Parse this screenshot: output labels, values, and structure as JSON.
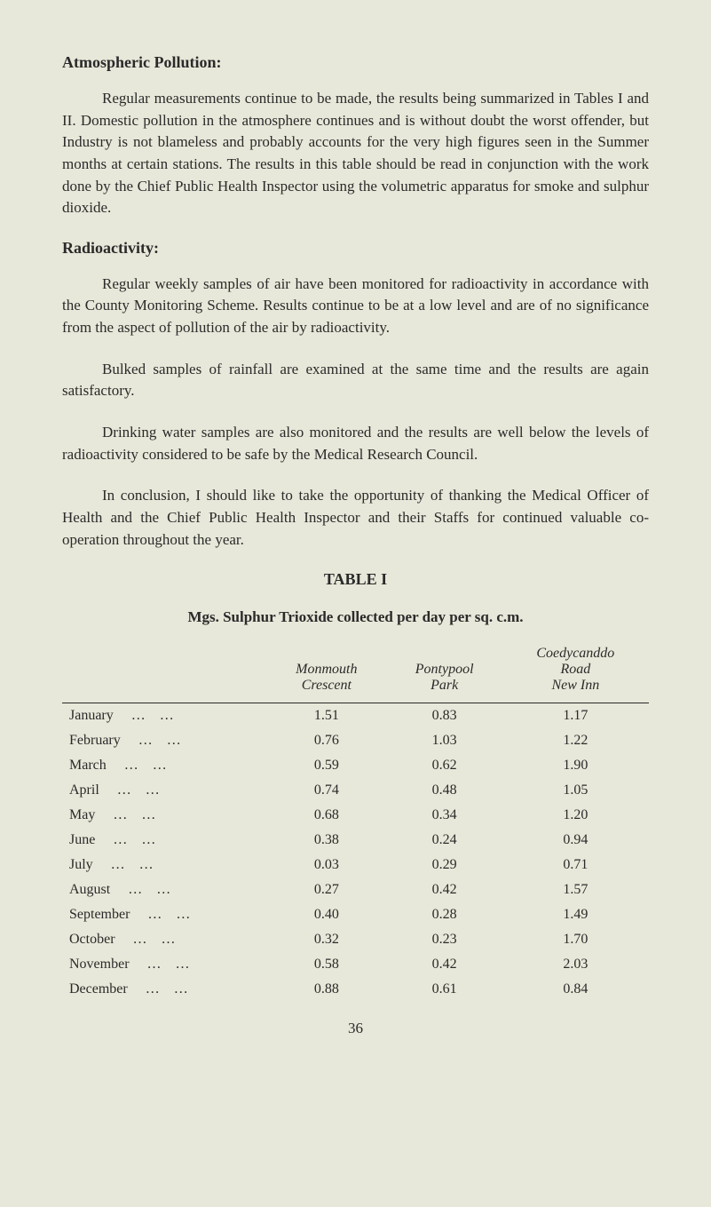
{
  "sections": [
    {
      "heading": "Atmospheric Pollution:",
      "paragraphs": [
        "Regular measurements continue to be made, the results being summarized in Tables I and II. Domestic pollution in the atmosphere continues and is without doubt the worst offender, but Industry is not blameless and probably accounts for the very high figures seen in the Summer months at certain stations. The results in this table should be read in conjunction with the work done by the Chief Public Health Inspector using the volumetric apparatus for smoke and sulphur dioxide."
      ]
    },
    {
      "heading": "Radioactivity:",
      "paragraphs": [
        "Regular weekly samples of air have been monitored for radioactivity in accordance with the County Monitoring Scheme. Results continue to be at a low level and are of no significance from the aspect of pollution of the air by radioactivity.",
        "Bulked samples of rainfall are examined at the same time and the results are again satisfactory.",
        "Drinking water samples are also monitored and the results are well below the levels of radioactivity considered to be safe by the Medical Research Council.",
        "In conclusion, I should like to take the opportunity of thanking the Medical Officer of Health and the Chief Public Health Inspector and their Staffs for continued valuable co-operation throughout the year."
      ]
    }
  ],
  "table": {
    "number_heading": "TABLE I",
    "title": "Mgs. Sulphur Trioxide collected per day per sq. c.m.",
    "columns": [
      {
        "line1": "",
        "line2": "Monmouth",
        "line3": "Crescent"
      },
      {
        "line1": "",
        "line2": "Pontypool",
        "line3": "Park"
      },
      {
        "line1": "Coedycanddo",
        "line2": "Road",
        "line3": "New Inn"
      }
    ],
    "rows": [
      {
        "label": "January",
        "values": [
          "1.51",
          "0.83",
          "1.17"
        ]
      },
      {
        "label": "February",
        "values": [
          "0.76",
          "1.03",
          "1.22"
        ]
      },
      {
        "label": "March",
        "values": [
          "0.59",
          "0.62",
          "1.90"
        ]
      },
      {
        "label": "April",
        "values": [
          "0.74",
          "0.48",
          "1.05"
        ]
      },
      {
        "label": "May",
        "values": [
          "0.68",
          "0.34",
          "1.20"
        ]
      },
      {
        "label": "June",
        "values": [
          "0.38",
          "0.24",
          "0.94"
        ]
      },
      {
        "label": "July",
        "values": [
          "0.03",
          "0.29",
          "0.71"
        ]
      },
      {
        "label": "August",
        "values": [
          "0.27",
          "0.42",
          "1.57"
        ]
      },
      {
        "label": "September",
        "values": [
          "0.40",
          "0.28",
          "1.49"
        ]
      },
      {
        "label": "October",
        "values": [
          "0.32",
          "0.23",
          "1.70"
        ]
      },
      {
        "label": "November",
        "values": [
          "0.58",
          "0.42",
          "2.03"
        ]
      },
      {
        "label": "December",
        "values": [
          "0.88",
          "0.61",
          "0.84"
        ]
      }
    ]
  },
  "pageNumber": "36",
  "dotsFiller": "…   …"
}
